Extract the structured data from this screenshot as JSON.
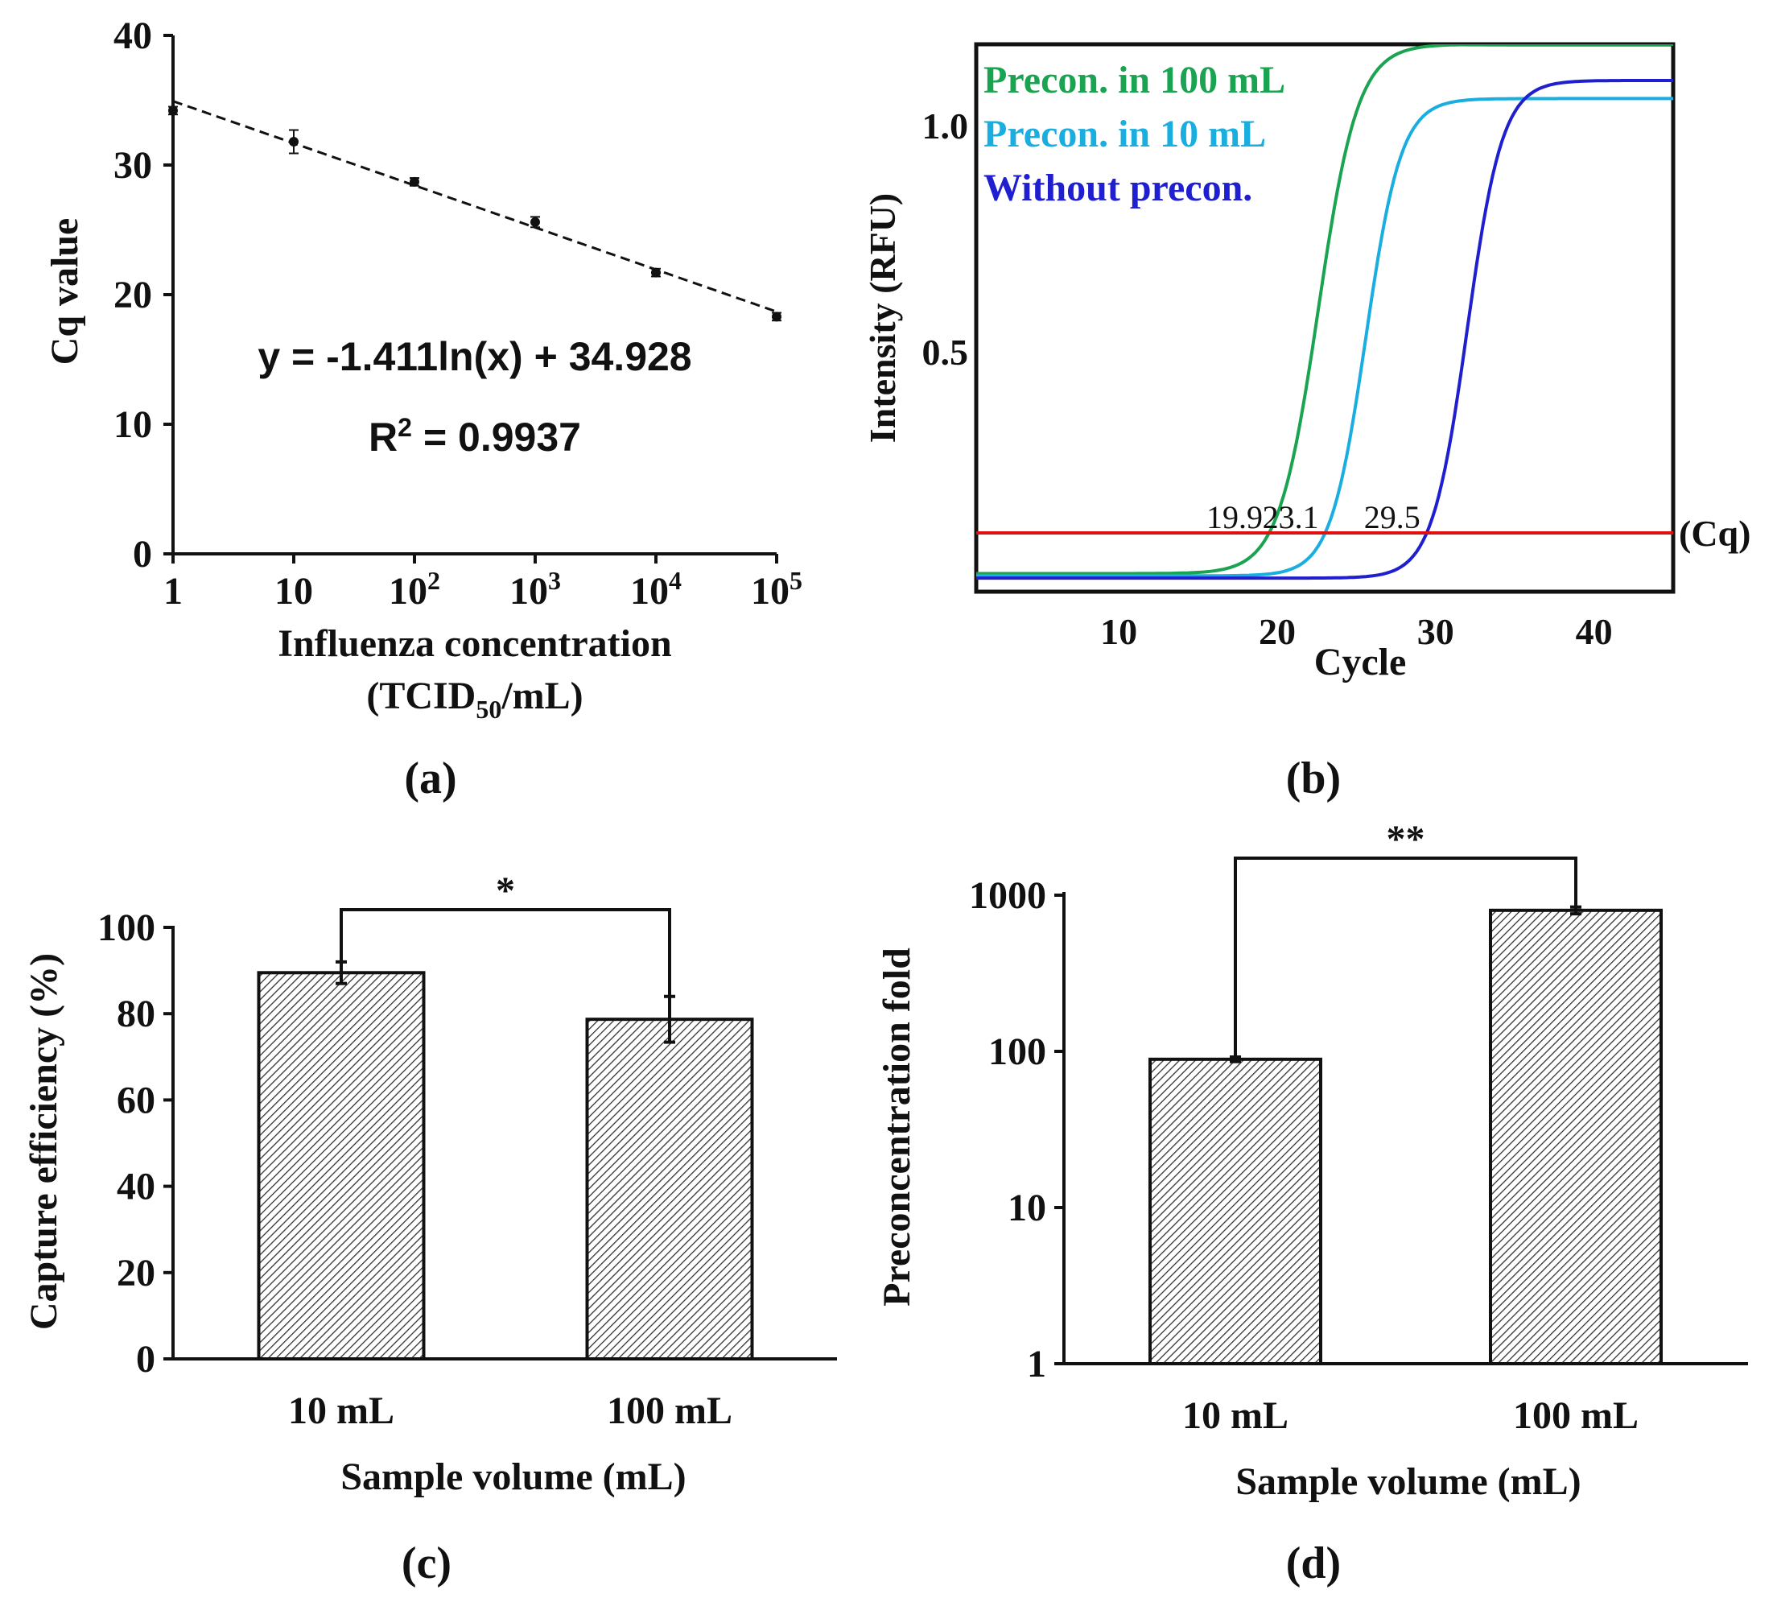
{
  "chart_data": [
    {
      "id": "a",
      "type": "scatter",
      "panel_label": "(a)",
      "xlabel": "Influenza concentration",
      "xlabel_line2": "(TCID50/mL)",
      "xlabel_unit_base": "(TCID",
      "xlabel_unit_sub": "50",
      "xlabel_unit_rest": "/mL)",
      "ylabel": "Cq value",
      "ylim": [
        0,
        40
      ],
      "yticks": [
        "0",
        "10",
        "20",
        "30",
        "40"
      ],
      "xscale": "log10",
      "xticks": [
        {
          "exp": 0,
          "base": "1",
          "sup": ""
        },
        {
          "exp": 1,
          "base": "10",
          "sup": ""
        },
        {
          "exp": 2,
          "base": "10",
          "sup": "2"
        },
        {
          "exp": 3,
          "base": "10",
          "sup": "3"
        },
        {
          "exp": 4,
          "base": "10",
          "sup": "4"
        },
        {
          "exp": 5,
          "base": "10",
          "sup": "5"
        }
      ],
      "x": [
        1,
        10,
        100,
        1000,
        10000,
        100000
      ],
      "y": [
        34.2,
        31.8,
        28.7,
        25.6,
        21.7,
        18.3
      ],
      "yerr": [
        0.3,
        0.9,
        0.3,
        0.4,
        0.3,
        0.3
      ],
      "trendline": {
        "type": "log",
        "slope": -1.411,
        "intercept": 34.928
      },
      "equation": "y = -1.411ln(x) + 34.928",
      "r2_base": "R",
      "r2_sup": "2",
      "r2_value": "= 0.9937"
    },
    {
      "id": "b",
      "type": "line",
      "panel_label": "(b)",
      "xlabel": "Cycle",
      "ylabel": "Intensity (RFU)",
      "xlim": [
        1,
        45
      ],
      "ylim": [
        -0.03,
        1.18
      ],
      "xticks": [
        "10",
        "20",
        "30",
        "40"
      ],
      "yticks": [
        "0.5",
        "1.0"
      ],
      "threshold": {
        "value": 0.1,
        "label": "(Cq)"
      },
      "series": [
        {
          "name": "Precon. in 100 mL",
          "color": "#1aa350",
          "cq": "19.9",
          "midpoint": 22.6,
          "slope": 0.8,
          "plateau": 1.18,
          "baseline": 0.01
        },
        {
          "name": "Precon. in 10 mL",
          "color": "#1aaee0",
          "cq": "23.1",
          "midpoint": 25.6,
          "slope": 0.9,
          "plateau": 1.06,
          "baseline": 0.005
        },
        {
          "name": "Without precon.",
          "color": "#1f1fd0",
          "cq": "29.5",
          "midpoint": 32.0,
          "slope": 0.9,
          "plateau": 1.1,
          "baseline": 0.0
        }
      ]
    },
    {
      "id": "c",
      "type": "bar",
      "panel_label": "(c)",
      "categories": [
        "10 mL",
        "100 mL"
      ],
      "values": [
        89.5,
        78.7
      ],
      "errors": [
        2.5,
        5.3
      ],
      "xlabel": "Sample volume (mL)",
      "ylabel": "Capture efficiency (%)",
      "ylim": [
        0,
        100
      ],
      "yticks": [
        "0",
        "20",
        "40",
        "60",
        "80",
        "100"
      ],
      "significance": "*"
    },
    {
      "id": "d",
      "type": "bar",
      "panel_label": "(d)",
      "categories": [
        "10 mL",
        "100 mL"
      ],
      "values": [
        89,
        800
      ],
      "errors": [
        3,
        40
      ],
      "xlabel": "Sample volume (mL)",
      "ylabel": "Preconcentration fold",
      "yscale": "log10",
      "ylim": [
        1,
        1000
      ],
      "yticks": [
        "1",
        "10",
        "100",
        "1000"
      ],
      "significance": "**"
    }
  ]
}
